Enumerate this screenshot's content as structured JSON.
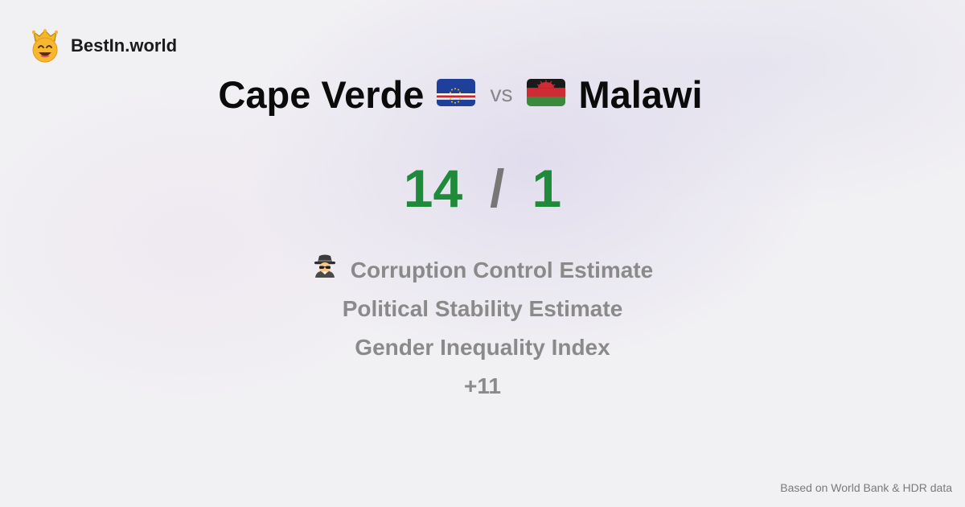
{
  "brand": {
    "name": "BestIn.world",
    "logo_icon": "crown-smiley-icon"
  },
  "comparison": {
    "left_country": "Cape Verde",
    "left_flag_icon": "cape-verde-flag-icon",
    "vs_label": "vs",
    "right_country": "Malawi",
    "right_flag_icon": "malawi-flag-icon"
  },
  "score": {
    "left": "14",
    "separator": "/",
    "right": "1",
    "color": "#1f8a3a"
  },
  "metrics": [
    {
      "label": "Corruption Control Estimate",
      "icon": "spy-icon"
    },
    {
      "label": "Political Stability Estimate"
    },
    {
      "label": "Gender Inequality Index"
    },
    {
      "label": "+11"
    }
  ],
  "footer": {
    "source": "Based on World Bank & HDR data"
  }
}
